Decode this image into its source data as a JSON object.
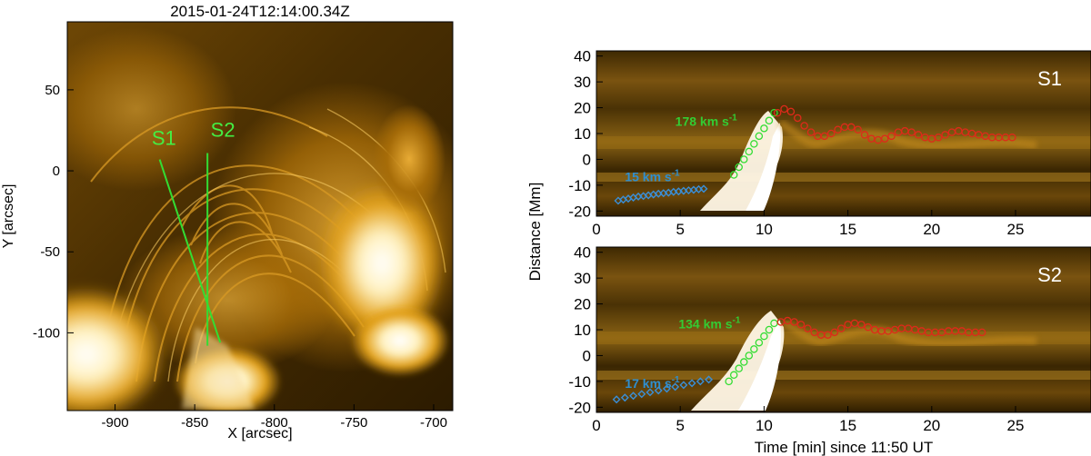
{
  "image_panel": {
    "title": "2015-01-24T12:14:00.34Z",
    "xlabel": "X [arcsec]",
    "ylabel": "Y [arcsec]",
    "xlim": [
      -930,
      -688
    ],
    "ylim": [
      -148,
      92
    ],
    "xticks": [
      -900,
      -850,
      -800,
      -750,
      -700
    ],
    "yticks": [
      50,
      0,
      -50,
      -100
    ],
    "slits": [
      {
        "name": "S1",
        "from": [
          -872,
          7
        ],
        "to": [
          -834,
          -106
        ],
        "label_at": [
          -877,
          16
        ]
      },
      {
        "name": "S2",
        "from": [
          -842,
          11
        ],
        "to": [
          -842,
          -108
        ],
        "label_at": [
          -840,
          21
        ]
      }
    ],
    "colors": {
      "slit": "#33dd33",
      "label": "#44ee44"
    }
  },
  "chart_data": [
    {
      "type": "scatter",
      "panel": "S1",
      "label": "S1",
      "xlabel": "",
      "ylabel": "Distance [Mm]",
      "xlim": [
        0,
        29.5
      ],
      "ylim": [
        -22,
        42
      ],
      "xticks": [
        0,
        5,
        10,
        15,
        20,
        25
      ],
      "yticks": [
        40,
        30,
        20,
        10,
        0,
        -10,
        -20
      ],
      "annotations": [
        {
          "text": "178 km s",
          "sup": "-1",
          "x": 4.7,
          "y": 13,
          "color": "#33cc33"
        },
        {
          "text": "15 km s",
          "sup": "-1",
          "x": 1.7,
          "y": -8.5,
          "color": "#2f8ecf"
        }
      ],
      "series": [
        {
          "marker": "diamond",
          "color": "#3a8fd8",
          "x": [
            1.3,
            1.6,
            1.9,
            2.2,
            2.5,
            2.8,
            3.1,
            3.4,
            3.7,
            4.0,
            4.3,
            4.6,
            4.9,
            5.2,
            5.5,
            5.8,
            6.1,
            6.4
          ],
          "y": [
            -16,
            -15.6,
            -15.2,
            -14.8,
            -14.4,
            -14.2,
            -13.9,
            -13.6,
            -13.3,
            -13.1,
            -12.9,
            -12.6,
            -12.4,
            -12.2,
            -12,
            -11.8,
            -11.6,
            -11.4
          ]
        },
        {
          "marker": "circle",
          "color": "#33dd33",
          "x": [
            8.2,
            8.5,
            8.8,
            9.1,
            9.4,
            9.7,
            10.0,
            10.3,
            10.6
          ],
          "y": [
            -6,
            -3,
            0,
            3,
            6,
            9,
            12,
            15,
            18
          ]
        },
        {
          "marker": "circle",
          "color": "#dd2a1a",
          "x": [
            10.8,
            11.2,
            11.6,
            12.0,
            12.4,
            12.8,
            13.2,
            13.6,
            14.0,
            14.4,
            14.8,
            15.2,
            15.6,
            16.0,
            16.4,
            16.8,
            17.2,
            17.6,
            18.0,
            18.4,
            18.8,
            19.2,
            19.6,
            20.0,
            20.4,
            20.8,
            21.2,
            21.6,
            22.0,
            22.4,
            22.8,
            23.2,
            23.6,
            24.0,
            24.4,
            24.8
          ],
          "y": [
            18,
            19.5,
            18.5,
            16,
            13,
            10.5,
            9,
            9,
            10,
            11.5,
            12.5,
            12.5,
            11.5,
            9.5,
            8,
            7.5,
            8,
            9,
            10.5,
            11,
            10.5,
            9.5,
            8.5,
            8,
            8.5,
            9.5,
            10.5,
            11,
            10.5,
            10,
            9.5,
            9,
            8.5,
            8.5,
            8.5,
            8.5
          ]
        }
      ]
    },
    {
      "type": "scatter",
      "panel": "S2",
      "label": "S2",
      "xlabel": "Time [min] since 11:50 UT",
      "ylabel": "Distance [Mm]",
      "xlim": [
        0,
        29.5
      ],
      "ylim": [
        -22,
        42
      ],
      "xticks": [
        0,
        5,
        10,
        15,
        20,
        25
      ],
      "yticks": [
        40,
        30,
        20,
        10,
        0,
        -10,
        -20
      ],
      "annotations": [
        {
          "text": "134 km s",
          "sup": "-1",
          "x": 4.9,
          "y": 10.5,
          "color": "#33cc33"
        },
        {
          "text": "17 km s",
          "sup": "-1",
          "x": 1.7,
          "y": -12.5,
          "color": "#2f8ecf"
        }
      ],
      "series": [
        {
          "marker": "diamond",
          "color": "#3a8fd8",
          "x": [
            1.2,
            1.7,
            2.2,
            2.7,
            3.2,
            3.7,
            4.2,
            4.7,
            5.2,
            5.7,
            6.2,
            6.7
          ],
          "y": [
            -17,
            -16.3,
            -15.6,
            -14.9,
            -14.2,
            -13.5,
            -12.8,
            -12.1,
            -11.4,
            -10.7,
            -10,
            -9.3
          ]
        },
        {
          "marker": "circle",
          "color": "#33dd33",
          "x": [
            7.9,
            8.2,
            8.5,
            8.8,
            9.1,
            9.4,
            9.7,
            10.0,
            10.3,
            10.6
          ],
          "y": [
            -10,
            -7.5,
            -5,
            -2.5,
            0,
            2.5,
            5,
            7.5,
            10,
            12.5
          ]
        },
        {
          "marker": "circle",
          "color": "#dd2a1a",
          "x": [
            11.0,
            11.4,
            11.8,
            12.2,
            12.6,
            13.0,
            13.4,
            13.8,
            14.2,
            14.6,
            15.0,
            15.4,
            15.8,
            16.2,
            16.6,
            17.0,
            17.4,
            17.8,
            18.2,
            18.6,
            19.0,
            19.4,
            19.8,
            20.2,
            20.6,
            21.0,
            21.4,
            21.8,
            22.2,
            22.6,
            23.0
          ],
          "y": [
            13,
            13.5,
            13,
            12,
            10.5,
            9,
            8,
            8,
            9,
            10.5,
            12,
            12.5,
            12,
            11,
            10,
            9.5,
            9.5,
            10,
            10.5,
            10.5,
            10,
            9.5,
            9,
            9,
            9,
            9.5,
            9.5,
            9.5,
            9,
            9,
            9
          ]
        }
      ]
    }
  ]
}
